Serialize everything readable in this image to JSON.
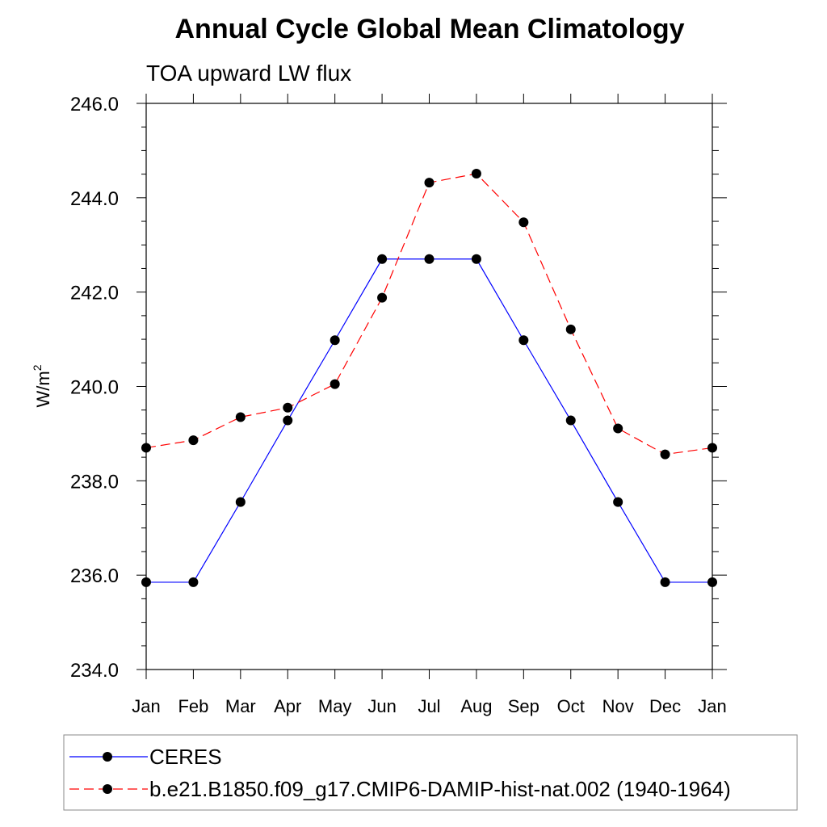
{
  "chart_data": {
    "type": "line",
    "title": "Annual Cycle Global Mean Climatology",
    "subtitle": "TOA upward LW flux",
    "xlabel": "",
    "ylabel": "W/m",
    "ylabel_superscript": "2",
    "categories": [
      "Jan",
      "Feb",
      "Mar",
      "Apr",
      "May",
      "Jun",
      "Jul",
      "Aug",
      "Sep",
      "Oct",
      "Nov",
      "Dec",
      "Jan"
    ],
    "ylim": [
      234.0,
      246.0
    ],
    "yticks": [
      "234.0",
      "236.0",
      "238.0",
      "240.0",
      "242.0",
      "244.0",
      "246.0"
    ],
    "grid": false,
    "legend_position": "bottom",
    "series": [
      {
        "name": "CERES",
        "color": "#0000ff",
        "line_style": "solid",
        "values": [
          235.85,
          235.85,
          237.55,
          239.28,
          240.98,
          242.7,
          242.7,
          242.7,
          240.98,
          239.28,
          237.55,
          235.85,
          235.85
        ]
      },
      {
        "name": "b.e21.B1850.f09_g17.CMIP6-DAMIP-hist-nat.002 (1940-1964)",
        "color": "#ff0000",
        "line_style": "dashed",
        "values": [
          238.7,
          238.86,
          239.35,
          239.55,
          240.05,
          241.88,
          244.32,
          244.51,
          243.48,
          241.21,
          239.11,
          238.56,
          238.7
        ]
      }
    ]
  }
}
